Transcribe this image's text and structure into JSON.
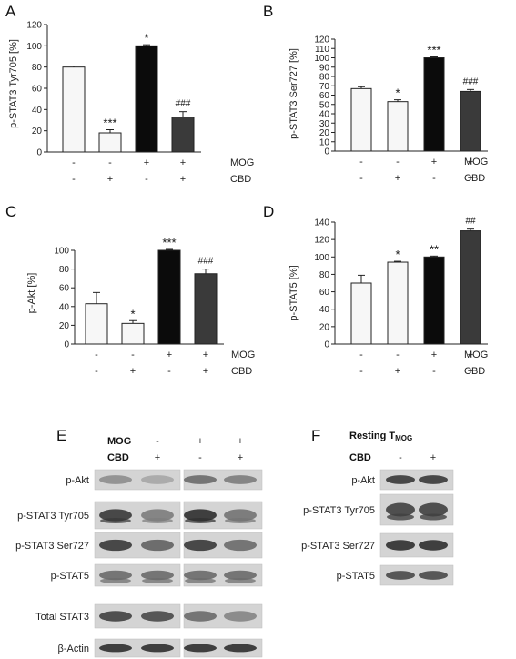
{
  "chart_data": [
    {
      "type": "bar",
      "panel": "A",
      "ylabel": "p-STAT3 Tyr705 [%]",
      "ylim": [
        0,
        120
      ],
      "yticks": [
        0,
        20,
        40,
        60,
        80,
        100,
        120
      ],
      "values": [
        80,
        18,
        100,
        33
      ],
      "errors": [
        1,
        3,
        1,
        5
      ],
      "fills": [
        "#f7f7f7",
        "#f7f7f7",
        "#0b0b0b",
        "#3a3a3a"
      ],
      "annotations": [
        "",
        "***",
        "*",
        "###"
      ]
    },
    {
      "type": "bar",
      "panel": "B",
      "ylabel": "p-STAT3 Ser727 [%]",
      "ylim": [
        0,
        120
      ],
      "yticks": [
        0,
        10,
        20,
        30,
        40,
        50,
        60,
        70,
        80,
        90,
        100,
        110,
        120
      ],
      "values": [
        67,
        53,
        100,
        64
      ],
      "errors": [
        2,
        2,
        1,
        2
      ],
      "fills": [
        "#f7f7f7",
        "#f7f7f7",
        "#0b0b0b",
        "#3a3a3a"
      ],
      "annotations": [
        "",
        "*",
        "***",
        "###"
      ]
    },
    {
      "type": "bar",
      "panel": "C",
      "ylabel": "p-Akt [%]",
      "ylim": [
        0,
        100
      ],
      "yticks": [
        0,
        20,
        40,
        60,
        80,
        100
      ],
      "values": [
        43,
        22,
        100,
        75
      ],
      "errors": [
        12,
        3,
        1,
        5
      ],
      "fills": [
        "#f7f7f7",
        "#f7f7f7",
        "#0b0b0b",
        "#3a3a3a"
      ],
      "annotations": [
        "",
        "*",
        "***",
        "###"
      ]
    },
    {
      "type": "bar",
      "panel": "D",
      "ylabel": "p-STAT5 [%]",
      "ylim": [
        0,
        140
      ],
      "yticks": [
        0,
        20,
        40,
        60,
        80,
        100,
        120,
        140
      ],
      "values": [
        70,
        94,
        100,
        130
      ],
      "errors": [
        9,
        1,
        1,
        2
      ],
      "fills": [
        "#f7f7f7",
        "#f7f7f7",
        "#0b0b0b",
        "#3a3a3a"
      ],
      "annotations": [
        "",
        "*",
        "**",
        "##"
      ]
    }
  ],
  "conditions": {
    "mog_label": "MOG",
    "cbd_label": "CBD",
    "mog": [
      "-",
      "-",
      "+",
      "+"
    ],
    "cbd": [
      "-",
      "+",
      "-",
      "+"
    ]
  },
  "blot_e": {
    "letter": "E",
    "mog_label": "MOG",
    "cbd_label": "CBD",
    "mog": [
      "-",
      "-",
      "+",
      "+"
    ],
    "cbd": [
      "-",
      "+",
      "-",
      "+"
    ],
    "rows": [
      "p-Akt",
      "p-STAT3 Tyr705",
      "p-STAT3 Ser727",
      "p-STAT5",
      "Total STAT3",
      "β-Actin"
    ]
  },
  "blot_f": {
    "letter": "F",
    "title_main": "Resting T",
    "title_sub": "MOG",
    "cbd_label": "CBD",
    "cbd": [
      "-",
      "+"
    ],
    "rows": [
      "p-Akt",
      "p-STAT3 Tyr705",
      "p-STAT3 Ser727",
      "p-STAT5"
    ]
  }
}
